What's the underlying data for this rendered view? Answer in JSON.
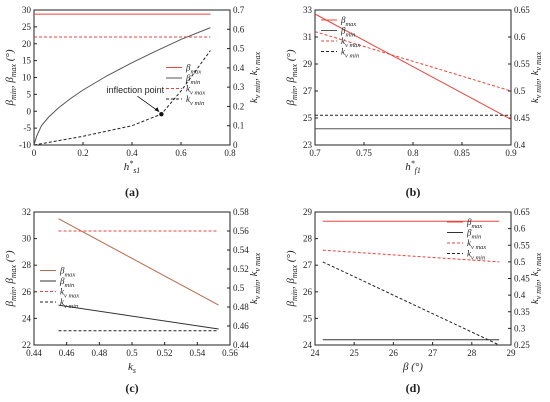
{
  "chart_data": [
    {
      "caption": "(a)",
      "type": "line",
      "xlabel": "h*_s1",
      "ylabel": "β_min, β_max (°)",
      "y2label": "k_v_min, k_v_max",
      "xlim": [
        0,
        0.8
      ],
      "ylim": [
        -10,
        30
      ],
      "y2lim": [
        0,
        0.7
      ],
      "xticks": [
        "0",
        "0.2",
        "0.4",
        "0.6",
        "0.8"
      ],
      "yticks": [
        "-10",
        "-5",
        "0",
        "5",
        "10",
        "15",
        "20",
        "25",
        "30"
      ],
      "y2ticks": [
        "0",
        "0.1",
        "0.2",
        "0.3",
        "0.4",
        "0.5",
        "0.6",
        "0.7"
      ],
      "legend": [
        "β_max",
        "β_min",
        "k_v_max",
        "k_v_min"
      ],
      "legend_position": "center-right",
      "annotation": {
        "text": "inflection point",
        "x": 0.52,
        "y2": 0.16
      },
      "series": [
        {
          "name": "β_max",
          "axis": "left",
          "color": "#e8453c",
          "dash": "solid",
          "x": [
            0,
            0.72
          ],
          "values": [
            28.8,
            28.8
          ]
        },
        {
          "name": "β_min",
          "axis": "left",
          "color": "#555555",
          "dash": "solid",
          "x": [
            0,
            0.01,
            0.03,
            0.06,
            0.1,
            0.15,
            0.2,
            0.3,
            0.4,
            0.5,
            0.6,
            0.72
          ],
          "values": [
            -10,
            -7.5,
            -4.3,
            -1.7,
            1.0,
            3.8,
            6.3,
            10.6,
            14.4,
            17.9,
            21.3,
            24.8
          ]
        },
        {
          "name": "k_v_max",
          "axis": "right",
          "color": "#e8453c",
          "dash": "dashed",
          "x": [
            0,
            0.72
          ],
          "values": [
            0.56,
            0.56
          ]
        },
        {
          "name": "k_v_min",
          "axis": "right",
          "color": "#222222",
          "dash": "dashed",
          "x": [
            0,
            0.2,
            0.4,
            0.52,
            0.6,
            0.72
          ],
          "values": [
            0.0,
            0.045,
            0.1,
            0.16,
            0.28,
            0.49
          ]
        }
      ]
    },
    {
      "caption": "(b)",
      "type": "line",
      "xlabel": "h*_f1",
      "ylabel": "β_min, β_max (°)",
      "y2label": "k_v_min, k_v_max",
      "xlim": [
        0.7,
        0.9
      ],
      "ylim": [
        23,
        33
      ],
      "y2lim": [
        0.4,
        0.65
      ],
      "xticks": [
        "0.7",
        "0.75",
        "0.8",
        "0.85",
        "0.9"
      ],
      "yticks": [
        "23",
        "25",
        "27",
        "29",
        "31",
        "33"
      ],
      "y2ticks": [
        "0.4",
        "0.45",
        "0.5",
        "0.55",
        "0.6",
        "0.65"
      ],
      "legend": [
        "β_max",
        "β_min",
        "k_v_max",
        "k_v_min"
      ],
      "legend_position": "top-left",
      "series": [
        {
          "name": "β_max",
          "axis": "left",
          "color": "#e8453c",
          "dash": "solid",
          "x": [
            0.7,
            0.9
          ],
          "values": [
            32.7,
            24.9
          ]
        },
        {
          "name": "β_min",
          "axis": "left",
          "color": "#555555",
          "dash": "solid",
          "x": [
            0.7,
            0.9
          ],
          "values": [
            24.2,
            24.2
          ]
        },
        {
          "name": "k_v_max",
          "axis": "right",
          "color": "#e8453c",
          "dash": "dashed",
          "x": [
            0.7,
            0.9
          ],
          "values": [
            0.61,
            0.5
          ]
        },
        {
          "name": "k_v_min",
          "axis": "right",
          "color": "#222222",
          "dash": "dashed",
          "x": [
            0.7,
            0.9
          ],
          "values": [
            0.455,
            0.455
          ]
        }
      ]
    },
    {
      "caption": "(c)",
      "type": "line",
      "xlabel": "k_s",
      "ylabel": "β_min, β_max (°)",
      "y2label": "k_v_min, k_v_max",
      "xlim": [
        0.44,
        0.56
      ],
      "ylim": [
        22,
        32
      ],
      "y2lim": [
        0.44,
        0.58
      ],
      "xticks": [
        "0.44",
        "0.46",
        "0.48",
        "0.5",
        "0.52",
        "0.54",
        "0.56"
      ],
      "yticks": [
        "22",
        "24",
        "26",
        "28",
        "30",
        "32"
      ],
      "y2ticks": [
        "0.44",
        "0.46",
        "0.48",
        "0.5",
        "0.52",
        "0.54",
        "0.56",
        "0.58"
      ],
      "legend": [
        "β_max",
        "β_min",
        "k_v_max",
        "k_v_min"
      ],
      "legend_position": "center-left",
      "series": [
        {
          "name": "β_max",
          "axis": "left",
          "color": "#b8684a",
          "dash": "solid",
          "x": [
            0.455,
            0.553
          ],
          "values": [
            31.5,
            25.0
          ]
        },
        {
          "name": "β_min",
          "axis": "left",
          "color": "#333333",
          "dash": "solid",
          "x": [
            0.455,
            0.553
          ],
          "values": [
            25.0,
            23.2
          ]
        },
        {
          "name": "k_v_max",
          "axis": "right",
          "color": "#e8453c",
          "dash": "dashed",
          "x": [
            0.455,
            0.553
          ],
          "values": [
            0.56,
            0.56
          ]
        },
        {
          "name": "k_v_min",
          "axis": "right",
          "color": "#222222",
          "dash": "dashed",
          "x": [
            0.455,
            0.553
          ],
          "values": [
            0.455,
            0.455
          ]
        }
      ]
    },
    {
      "caption": "(d)",
      "type": "line",
      "xlabel": "β (°)",
      "ylabel": "β_min, β_max (°)",
      "y2label": "k_v_min, k_v_max",
      "xlim": [
        24,
        29
      ],
      "ylim": [
        24,
        29
      ],
      "y2lim": [
        0.25,
        0.65
      ],
      "xticks": [
        "24",
        "25",
        "26",
        "27",
        "28",
        "29"
      ],
      "yticks": [
        "24",
        "25",
        "26",
        "27",
        "28",
        "29"
      ],
      "y2ticks": [
        "0.25",
        "0.3",
        "0.35",
        "0.4",
        "0.45",
        "0.5",
        "0.55",
        "0.6",
        "0.65"
      ],
      "legend": [
        "β_max",
        "β_min",
        "k_v_max",
        "k_v_min"
      ],
      "legend_position": "top-right",
      "series": [
        {
          "name": "β_max",
          "axis": "left",
          "color": "#e8453c",
          "dash": "solid",
          "x": [
            24.2,
            28.7
          ],
          "values": [
            28.65,
            28.65
          ]
        },
        {
          "name": "β_min",
          "axis": "left",
          "color": "#333333",
          "dash": "solid",
          "x": [
            24.2,
            28.7
          ],
          "values": [
            24.2,
            24.2
          ]
        },
        {
          "name": "k_v_max",
          "axis": "right",
          "color": "#e8453c",
          "dash": "dashed",
          "x": [
            24.2,
            28.7
          ],
          "values": [
            0.535,
            0.5
          ]
        },
        {
          "name": "k_v_min",
          "axis": "right",
          "color": "#222222",
          "dash": "dashed",
          "x": [
            24.2,
            28.7
          ],
          "values": [
            0.5,
            0.25
          ]
        }
      ]
    }
  ]
}
